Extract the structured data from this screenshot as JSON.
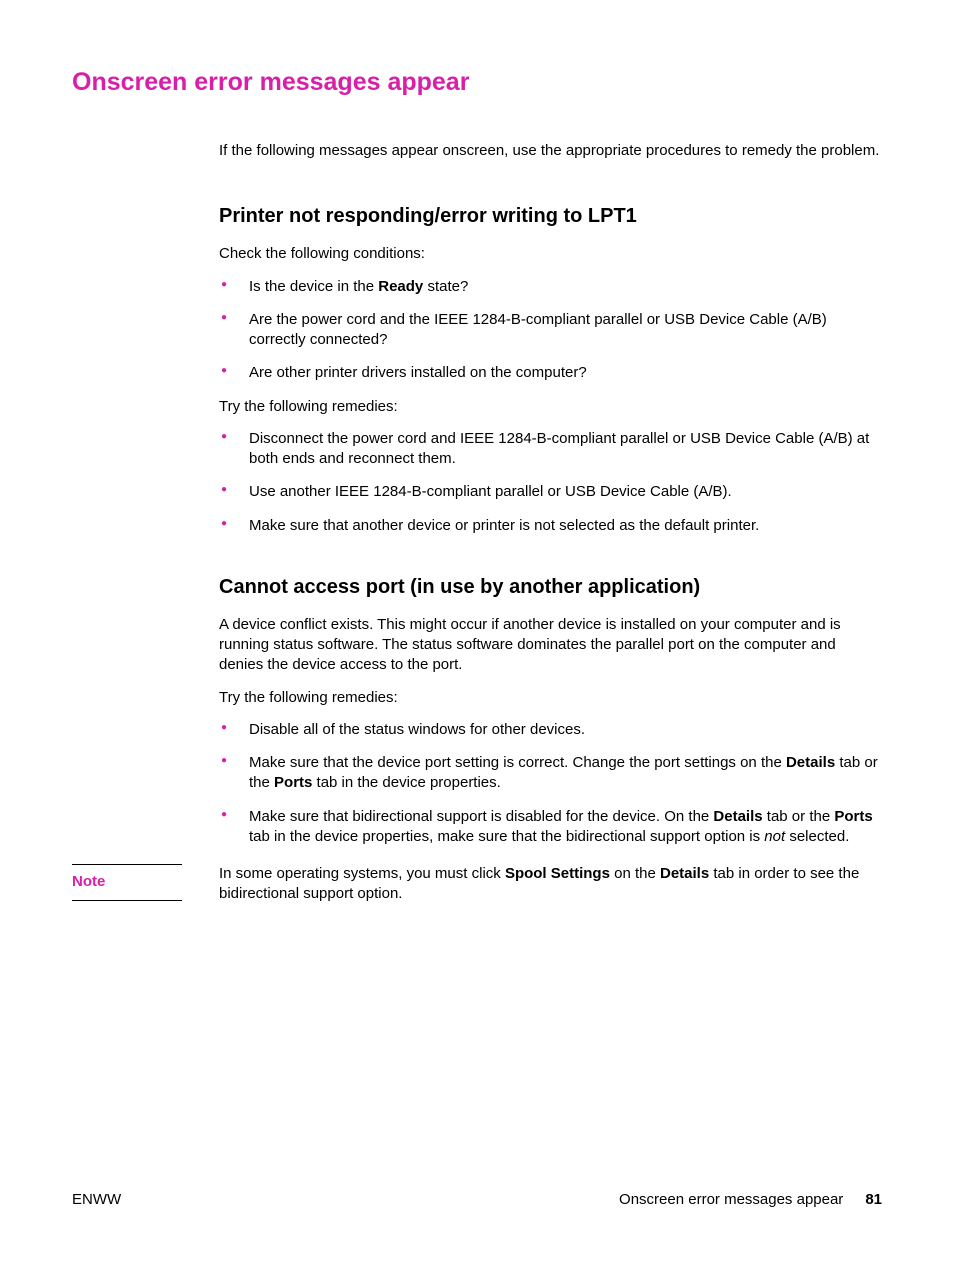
{
  "colors": {
    "accent": "#d91ea8",
    "text": "#000000",
    "background": "#ffffff"
  },
  "typography": {
    "main_heading_size_pt": 19,
    "sub_heading_size_pt": 15,
    "body_size_pt": 11
  },
  "mainHeading": "Onscreen error messages appear",
  "intro": "If the following messages appear onscreen, use the appropriate procedures to remedy the problem.",
  "section1": {
    "heading": "Printer not responding/error writing to LPT1",
    "checkIntro": "Check the following conditions:",
    "checkItems": {
      "item1_pre": "Is the device in the ",
      "item1_bold": "Ready",
      "item1_post": " state?",
      "item2": "Are the power cord and the IEEE 1284-B-compliant parallel or USB Device Cable (A/B) correctly connected?",
      "item3": "Are other printer drivers installed on the computer?"
    },
    "tryIntro": "Try the following remedies:",
    "tryItems": {
      "item1": "Disconnect the power cord and IEEE 1284-B-compliant parallel or USB Device Cable (A/B) at both ends and reconnect them.",
      "item2": "Use another IEEE 1284-B-compliant parallel or USB Device Cable (A/B).",
      "item3": "Make sure that another device or printer is not selected as the default printer."
    }
  },
  "section2": {
    "heading": "Cannot access port (in use by another application)",
    "para1": "A device conflict exists. This might occur if another device is installed on your computer and is running status software. The status software dominates the parallel port on the computer and denies the device access to the port.",
    "tryIntro": "Try the following remedies:",
    "tryItems": {
      "item1": "Disable all of the status windows for other devices.",
      "item2_pre": "Make sure that the device port setting is correct. Change the port settings on the ",
      "item2_b1": "Details",
      "item2_mid": " tab or the ",
      "item2_b2": "Ports",
      "item2_post": " tab in the device properties.",
      "item3_pre": "Make sure that bidirectional support is disabled for the device. On the ",
      "item3_b1": "Details",
      "item3_mid1": " tab or the ",
      "item3_b2": "Ports",
      "item3_mid2": " tab in the device properties, make sure that the bidirectional support option is ",
      "item3_it": "not",
      "item3_post": " selected."
    }
  },
  "note": {
    "label": "Note",
    "text_pre": "In some operating systems, you must click ",
    "text_b1": "Spool Settings",
    "text_mid": " on the ",
    "text_b2": "Details",
    "text_post": " tab in order to see the bidirectional support option."
  },
  "footer": {
    "left": "ENWW",
    "rightText": "Onscreen error messages appear",
    "pageNum": "81"
  }
}
